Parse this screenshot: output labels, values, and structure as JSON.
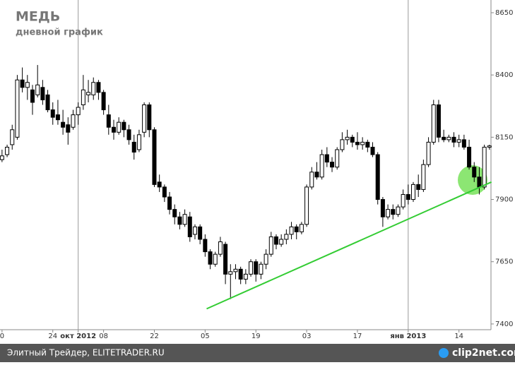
{
  "chart_data": {
    "type": "candlestick",
    "title": "МЕДЬ",
    "subtitle": "дневной график",
    "xlim": [
      -0.4,
      97
    ],
    "ylim": [
      7377,
      8701
    ],
    "yticks": [
      8650,
      8400,
      8150,
      7900,
      7650,
      7400
    ],
    "xticks": [
      0,
      {
        "value": 10,
        "label": "24"
      },
      {
        "value": 15,
        "label": "окт 2012"
      },
      {
        "value": 20,
        "label": "08"
      },
      {
        "value": 30,
        "label": "22"
      },
      {
        "value": 40,
        "label": "05"
      },
      {
        "value": 50,
        "label": "19"
      },
      {
        "value": 60,
        "label": "03"
      },
      {
        "value": 70,
        "label": "17"
      },
      {
        "value": 80,
        "label": "янв 2013"
      },
      {
        "value": 90,
        "label": "14"
      }
    ],
    "month_lines": [
      15,
      80
    ],
    "up_color": "#ffffff",
    "down_color": "#000000",
    "ohlc": [
      [
        8060,
        8100,
        8050,
        8075
      ],
      [
        8080,
        8120,
        8070,
        8110
      ],
      [
        8120,
        8200,
        8100,
        8180
      ],
      [
        8150,
        8400,
        8140,
        8380
      ],
      [
        8380,
        8430,
        8330,
        8350
      ],
      [
        8350,
        8400,
        8300,
        8370
      ],
      [
        8340,
        8360,
        8240,
        8290
      ],
      [
        8320,
        8440,
        8310,
        8360
      ],
      [
        8350,
        8380,
        8280,
        8300
      ],
      [
        8320,
        8340,
        8250,
        8260
      ],
      [
        8260,
        8290,
        8200,
        8230
      ],
      [
        8240,
        8300,
        8200,
        8220
      ],
      [
        8210,
        8260,
        8160,
        8190
      ],
      [
        8200,
        8230,
        8120,
        8170
      ],
      [
        8190,
        8260,
        8180,
        8240
      ],
      [
        8240,
        8290,
        8200,
        8270
      ],
      [
        8280,
        8400,
        8260,
        8340
      ],
      [
        8320,
        8380,
        8290,
        8330
      ],
      [
        8320,
        8390,
        8300,
        8370
      ],
      [
        8370,
        8380,
        8300,
        8330
      ],
      [
        8330,
        8340,
        8240,
        8260
      ],
      [
        8240,
        8280,
        8160,
        8190
      ],
      [
        8190,
        8220,
        8140,
        8170
      ],
      [
        8170,
        8230,
        8160,
        8210
      ],
      [
        8210,
        8220,
        8150,
        8180
      ],
      [
        8180,
        8200,
        8120,
        8140
      ],
      [
        8130,
        8160,
        8060,
        8090
      ],
      [
        8100,
        8180,
        8090,
        8160
      ],
      [
        8170,
        8290,
        8150,
        8280
      ],
      [
        8280,
        8290,
        8150,
        8180
      ],
      [
        8180,
        8190,
        7950,
        7960
      ],
      [
        7970,
        8000,
        7930,
        7950
      ],
      [
        7950,
        7960,
        7890,
        7910
      ],
      [
        7910,
        7930,
        7840,
        7860
      ],
      [
        7860,
        7880,
        7800,
        7830
      ],
      [
        7830,
        7850,
        7780,
        7800
      ],
      [
        7800,
        7860,
        7790,
        7840
      ],
      [
        7830,
        7850,
        7730,
        7750
      ],
      [
        7760,
        7800,
        7740,
        7790
      ],
      [
        7790,
        7800,
        7720,
        7740
      ],
      [
        7740,
        7760,
        7670,
        7690
      ],
      [
        7690,
        7700,
        7620,
        7640
      ],
      [
        7640,
        7690,
        7630,
        7680
      ],
      [
        7680,
        7750,
        7670,
        7730
      ],
      [
        7720,
        7730,
        7560,
        7600
      ],
      [
        7600,
        7640,
        7500,
        7610
      ],
      [
        7610,
        7640,
        7580,
        7620
      ],
      [
        7620,
        7630,
        7560,
        7580
      ],
      [
        7580,
        7620,
        7560,
        7600
      ],
      [
        7600,
        7660,
        7590,
        7650
      ],
      [
        7650,
        7660,
        7570,
        7600
      ],
      [
        7600,
        7650,
        7580,
        7640
      ],
      [
        7640,
        7700,
        7620,
        7680
      ],
      [
        7680,
        7770,
        7670,
        7750
      ],
      [
        7750,
        7760,
        7700,
        7720
      ],
      [
        7720,
        7760,
        7710,
        7740
      ],
      [
        7740,
        7780,
        7720,
        7760
      ],
      [
        7760,
        7810,
        7740,
        7790
      ],
      [
        7790,
        7800,
        7740,
        7770
      ],
      [
        7770,
        7810,
        7760,
        7800
      ],
      [
        7800,
        7960,
        7790,
        7950
      ],
      [
        7950,
        8030,
        7940,
        8010
      ],
      [
        8010,
        8050,
        7980,
        7990
      ],
      [
        7990,
        8100,
        7980,
        8080
      ],
      [
        8080,
        8110,
        8030,
        8050
      ],
      [
        8050,
        8070,
        8010,
        8030
      ],
      [
        8030,
        8110,
        8020,
        8100
      ],
      [
        8100,
        8170,
        8090,
        8140
      ],
      [
        8140,
        8180,
        8120,
        8150
      ],
      [
        8150,
        8160,
        8110,
        8130
      ],
      [
        8130,
        8170,
        8100,
        8120
      ],
      [
        8120,
        8150,
        8100,
        8130
      ],
      [
        8130,
        8140,
        8090,
        8110
      ],
      [
        8110,
        8130,
        8070,
        8080
      ],
      [
        8080,
        8090,
        7880,
        7900
      ],
      [
        7900,
        7910,
        7790,
        7830
      ],
      [
        7830,
        7880,
        7820,
        7860
      ],
      [
        7860,
        7880,
        7820,
        7840
      ],
      [
        7840,
        7880,
        7830,
        7870
      ],
      [
        7870,
        7940,
        7860,
        7920
      ],
      [
        7920,
        7960,
        7880,
        7900
      ],
      [
        7900,
        7970,
        7890,
        7960
      ],
      [
        7960,
        8000,
        7910,
        7940
      ],
      [
        7940,
        8060,
        7930,
        8040
      ],
      [
        8040,
        8150,
        8030,
        8130
      ],
      [
        8130,
        8300,
        8120,
        8280
      ],
      [
        8280,
        8300,
        8130,
        8150
      ],
      [
        8150,
        8180,
        8130,
        8140
      ],
      [
        8140,
        8160,
        8130,
        8150
      ],
      [
        8150,
        8170,
        8110,
        8130
      ],
      [
        8130,
        8160,
        8110,
        8140
      ],
      [
        8140,
        8160,
        8100,
        8110
      ],
      [
        8110,
        8140,
        8020,
        8030
      ],
      [
        8030,
        8050,
        7970,
        7990
      ],
      [
        7990,
        8030,
        7920,
        7950
      ],
      [
        7950,
        8120,
        7940,
        8110
      ],
      [
        8110,
        8120,
        8100,
        8115
      ]
    ],
    "trendline": {
      "x": [
        40.3,
        96.4
      ],
      "y": [
        7461,
        7970
      ],
      "color": "#33cc33"
    }
  },
  "footer": {
    "source": "Элитный Трейдер, ELITETRADER.RU",
    "logo": "clip2net.com"
  }
}
